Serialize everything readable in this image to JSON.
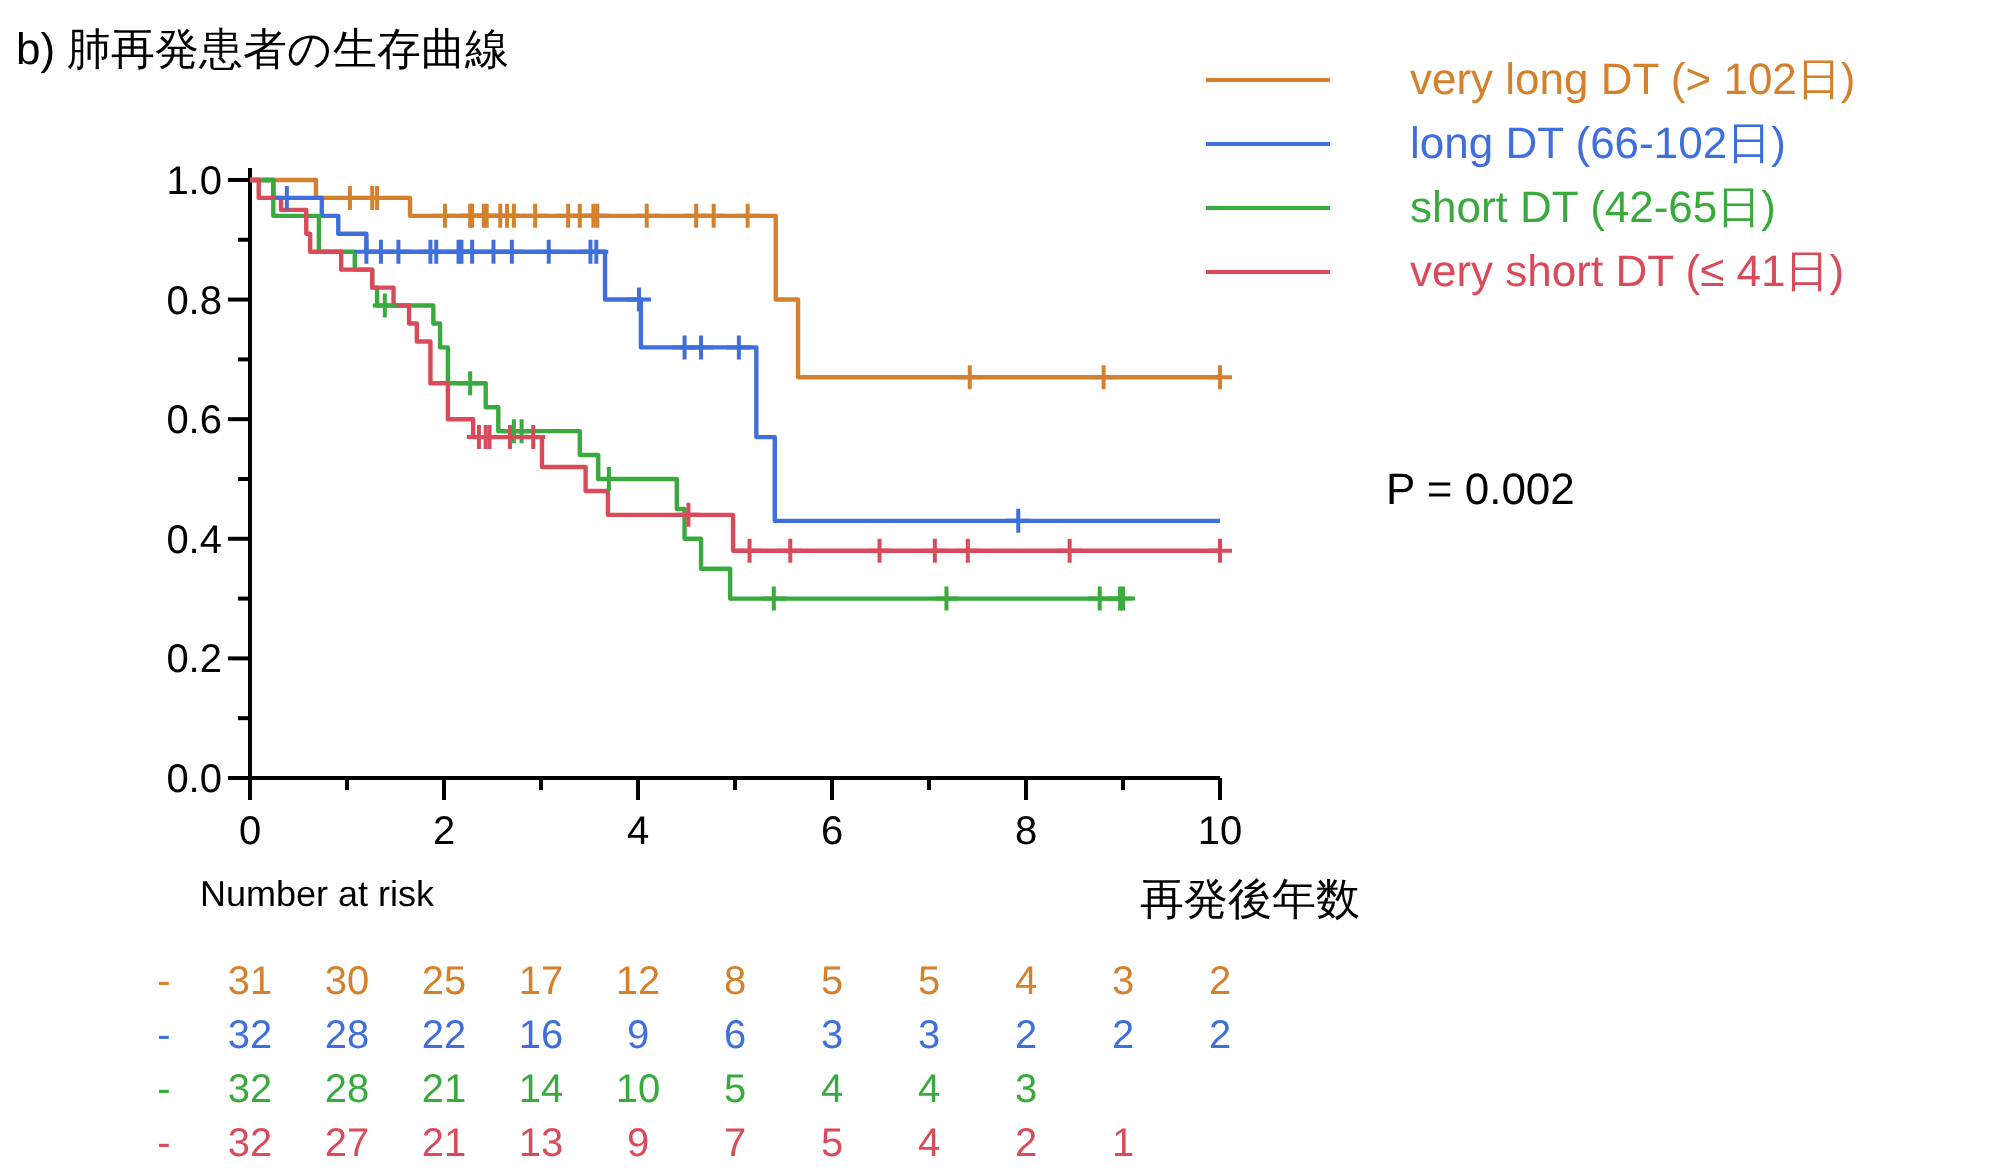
{
  "chart_data": {
    "type": "step",
    "title": "b) 肺再発患者の生存曲線",
    "xlabel": "再発後年数",
    "xlim": [
      0,
      10
    ],
    "ylim": [
      0,
      1.02
    ],
    "xticks": [
      0,
      {
        "value": 1,
        "label": null
      },
      2,
      {
        "value": 3,
        "label": null
      },
      4,
      {
        "value": 5,
        "label": null
      },
      6,
      {
        "value": 7,
        "label": null
      },
      8,
      {
        "value": 9,
        "label": null
      },
      10
    ],
    "yticks": [
      {
        "value": 0,
        "label": "0.0"
      },
      {
        "value": 0.1,
        "label": null
      },
      0.2,
      {
        "value": 0.3,
        "label": null
      },
      0.4,
      {
        "value": 0.5,
        "label": null
      },
      0.6,
      {
        "value": 0.7,
        "label": null
      },
      0.8,
      {
        "value": 0.9,
        "label": null
      },
      {
        "value": 1,
        "label": "1.0"
      }
    ],
    "grid": false,
    "legend": "top right",
    "series": [
      {
        "name": "very long DT (> 102日)",
        "color": "#d4802c",
        "x": [
          0,
          0.68,
          1.65,
          5.42,
          5.65,
          10
        ],
        "values": [
          1,
          0.97,
          0.94,
          0.8,
          0.67,
          0.67
        ]
      },
      {
        "name": "long DT (66-102日)",
        "color": "#3e6fdc",
        "x": [
          0,
          0.24,
          0.74,
          0.91,
          1.2,
          3.66,
          4.03,
          5.22,
          5.41,
          10
        ],
        "values": [
          1,
          0.97,
          0.94,
          0.91,
          0.88,
          0.8,
          0.72,
          0.57,
          0.43,
          0.43
        ]
      },
      {
        "name": "short DT (42-65日)",
        "color": "#3aaa3e",
        "x": [
          0,
          0.24,
          0.71,
          1.08,
          1.26,
          1.31,
          1.89,
          1.96,
          2.04,
          2.43,
          2.56,
          3.4,
          3.59,
          4.4,
          4.48,
          4.65,
          4.95,
          9.0
        ],
        "values": [
          1,
          0.94,
          0.88,
          0.85,
          0.82,
          0.79,
          0.76,
          0.72,
          0.66,
          0.62,
          0.58,
          0.54,
          0.5,
          0.45,
          0.4,
          0.35,
          0.3,
          0.3
        ]
      },
      {
        "name": "very short DT (≤ 41日)",
        "color": "#d94a5a",
        "x": [
          0,
          0.09,
          0.32,
          0.58,
          0.62,
          0.94,
          1.26,
          1.48,
          1.64,
          1.72,
          1.86,
          2.04,
          2.3,
          3.01,
          3.46,
          3.69,
          4.98,
          10
        ],
        "values": [
          1,
          0.97,
          0.95,
          0.91,
          0.88,
          0.85,
          0.82,
          0.79,
          0.76,
          0.73,
          0.66,
          0.6,
          0.57,
          0.52,
          0.48,
          0.44,
          0.38,
          0.38
        ]
      },
      {
        "color": "#d4802c",
        "type": "scatter",
        "marker": "cross",
        "x": [
          1.03,
          1.26,
          1.31,
          2.01,
          2.27,
          2.29,
          2.41,
          2.44,
          2.58,
          2.65,
          2.72,
          2.94,
          3.28,
          3.4,
          3.54,
          3.58,
          4.09,
          4.6,
          4.78,
          5.13,
          7.42,
          8.8,
          10
        ],
        "values": [
          0.97,
          0.97,
          0.97,
          0.94,
          0.94,
          0.94,
          0.94,
          0.94,
          0.94,
          0.94,
          0.94,
          0.94,
          0.94,
          0.94,
          0.94,
          0.94,
          0.94,
          0.94,
          0.94,
          0.94,
          0.67,
          0.67,
          0.67
        ]
      },
      {
        "color": "#3e6fdc",
        "type": "scatter",
        "marker": "cross",
        "x": [
          0.38,
          1.2,
          1.35,
          1.53,
          1.86,
          1.92,
          2.15,
          2.18,
          2.29,
          2.51,
          2.7,
          3.08,
          3.51,
          3.57,
          4.01,
          4.48,
          4.65,
          5.04,
          7.92
        ],
        "values": [
          0.97,
          0.88,
          0.88,
          0.88,
          0.88,
          0.88,
          0.88,
          0.88,
          0.88,
          0.88,
          0.88,
          0.88,
          0.88,
          0.88,
          0.8,
          0.72,
          0.72,
          0.72,
          0.43
        ]
      },
      {
        "color": "#3aaa3e",
        "type": "scatter",
        "marker": "cross",
        "x": [
          1.39,
          2.27,
          2.72,
          2.8,
          3.7,
          5.4,
          7.18,
          8.76,
          8.97,
          9.0
        ],
        "values": [
          0.79,
          0.66,
          0.58,
          0.58,
          0.5,
          0.3,
          0.3,
          0.3,
          0.3,
          0.3
        ]
      },
      {
        "color": "#d94a5a",
        "type": "scatter",
        "marker": "cross",
        "x": [
          2.36,
          2.43,
          2.47,
          2.68,
          2.92,
          4.52,
          5.15,
          5.57,
          6.49,
          7.06,
          7.4,
          8.45,
          10
        ],
        "values": [
          0.57,
          0.57,
          0.57,
          0.57,
          0.57,
          0.44,
          0.38,
          0.38,
          0.38,
          0.38,
          0.38,
          0.38,
          0.38
        ]
      }
    ],
    "annotations": [
      "Number at risk",
      "P = 0.002",
      "- 31 30 25 17 12 8 5 5 4 3 2",
      "- 32 28 22 16 9 6 3 3 2 2 2",
      "- 32 28 21 14 10 5 4 4 3",
      "- 32 27 21 13 9 7 5 4 2 1"
    ]
  }
}
